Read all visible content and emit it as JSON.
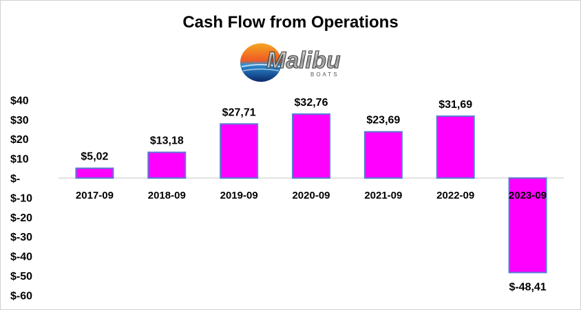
{
  "chart_data": {
    "type": "bar",
    "title": "Cash Flow from Operations",
    "categories": [
      "2017-09",
      "2018-09",
      "2019-09",
      "2020-09",
      "2021-09",
      "2022-09",
      "2023-09"
    ],
    "values": [
      5.02,
      13.18,
      27.71,
      32.76,
      23.69,
      31.69,
      -48.41
    ],
    "data_labels": [
      "$5,02",
      "$13,18",
      "$27,71",
      "$32,76",
      "$23,69",
      "$31,69",
      "$-48,41"
    ],
    "y_ticks": [
      40,
      30,
      20,
      10,
      0,
      -10,
      -20,
      -30,
      -40,
      -50,
      -60
    ],
    "y_tick_labels": [
      "$40",
      "$30",
      "$20",
      "$10",
      "$-",
      "$-10",
      "$-20",
      "$-30",
      "$-40",
      "$-50",
      "$-60"
    ],
    "ylim": [
      -60,
      40
    ],
    "xlabel": "",
    "ylabel": "",
    "grid": false,
    "legend": "none",
    "colors": {
      "bar_fill": "#ff00ff",
      "bar_stroke": "#5b7bd5",
      "axis": "#d9d9d9"
    }
  },
  "logo": {
    "text": "Malibu",
    "subtext": "BOATS"
  }
}
